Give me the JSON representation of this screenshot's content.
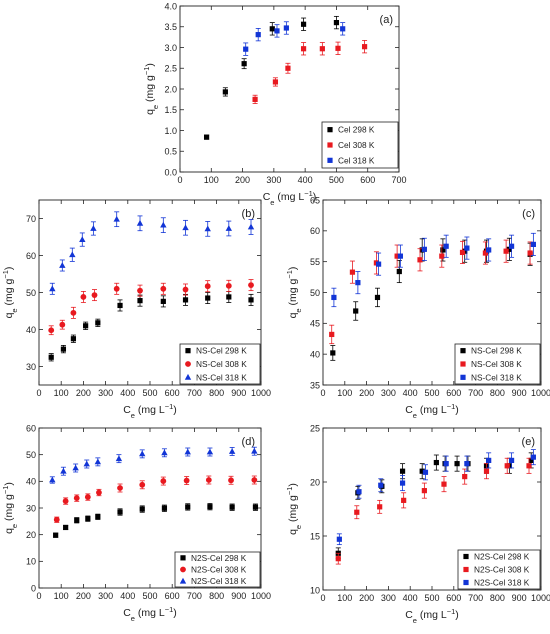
{
  "chart_data": [
    {
      "type": "scatter",
      "panel_label": "(a)",
      "xlabel": {
        "main": "C",
        "sub": "e",
        "units": " (mg L",
        "sup": "−1",
        "close": ")"
      },
      "ylabel": {
        "main": "q",
        "sub": "e",
        "units": " (mg g",
        "sup": "−1",
        "close": ")"
      },
      "xlim": [
        0,
        700
      ],
      "ylim": [
        0.0,
        4.0
      ],
      "xticks": [
        0,
        100,
        200,
        300,
        400,
        500,
        600,
        700
      ],
      "yticks": [
        0.0,
        0.5,
        1.0,
        1.5,
        2.0,
        2.5,
        3.0,
        3.5,
        4.0
      ],
      "xtick_labels": [
        "0",
        "100",
        "200",
        "300",
        "400",
        "500",
        "600",
        "700"
      ],
      "ytick_labels": [
        "0.0",
        "0.5",
        "1.0",
        "1.5",
        "2.0",
        "2.5",
        "3.0",
        "3.5",
        "4.0"
      ],
      "legend_position": "bottom-right",
      "series": [
        {
          "name": "Cel 298 K",
          "color": "#000000",
          "marker": "square",
          "x": [
            85,
            145,
            205,
            295,
            395,
            500
          ],
          "y": [
            0.84,
            1.93,
            2.61,
            3.45,
            3.56,
            3.6
          ],
          "err": [
            0.05,
            0.1,
            0.12,
            0.15,
            0.15,
            0.15
          ]
        },
        {
          "name": "Cel 308 K",
          "color": "#e8191f",
          "marker": "square",
          "x": [
            240,
            305,
            345,
            395,
            455,
            505,
            590
          ],
          "y": [
            1.75,
            2.17,
            2.5,
            2.97,
            2.97,
            2.98,
            3.02
          ],
          "err": [
            0.1,
            0.1,
            0.12,
            0.15,
            0.15,
            0.15,
            0.15
          ]
        },
        {
          "name": "Cel 318 K",
          "color": "#1235d6",
          "marker": "square",
          "x": [
            210,
            250,
            310,
            340,
            520
          ],
          "y": [
            2.96,
            3.31,
            3.4,
            3.47,
            3.45
          ],
          "err": [
            0.15,
            0.15,
            0.15,
            0.15,
            0.15
          ]
        }
      ]
    },
    {
      "type": "scatter",
      "panel_label": "(b)",
      "xlabel": {
        "main": "C",
        "sub": "e",
        "units": " (mg L",
        "sup": "−1",
        "close": ")"
      },
      "ylabel": {
        "main": "q",
        "sub": "e",
        "units": " (mg g",
        "sup": "−1",
        "close": ")"
      },
      "xlim": [
        0,
        1000
      ],
      "ylim": [
        25,
        75
      ],
      "xticks": [
        0,
        100,
        200,
        300,
        400,
        500,
        600,
        700,
        800,
        900,
        1000
      ],
      "yticks": [
        30,
        40,
        50,
        60,
        70
      ],
      "xtick_labels": [
        "0",
        "100",
        "200",
        "300",
        "400",
        "500",
        "600",
        "700",
        "800",
        "900",
        "1000"
      ],
      "ytick_labels": [
        "30",
        "40",
        "50",
        "60",
        "70"
      ],
      "legend_position": "bottom-right",
      "series": [
        {
          "name": "NS-Cel 298 K",
          "color": "#000000",
          "marker": "square",
          "x": [
            55,
            110,
            155,
            210,
            265,
            365,
            455,
            560,
            660,
            760,
            855,
            955
          ],
          "y": [
            32.5,
            34.7,
            37.5,
            41.0,
            41.8,
            46.5,
            47.8,
            47.6,
            48.0,
            48.5,
            48.8,
            48.0
          ],
          "err": [
            1.0,
            1.0,
            1.0,
            1.0,
            1.0,
            1.5,
            1.5,
            1.5,
            1.5,
            1.5,
            1.5,
            1.5
          ]
        },
        {
          "name": "NS-Cel 308 K",
          "color": "#e8191f",
          "marker": "circle",
          "x": [
            55,
            105,
            155,
            200,
            250,
            350,
            455,
            560,
            660,
            760,
            855,
            955
          ],
          "y": [
            39.8,
            41.3,
            44.5,
            48.8,
            49.3,
            51.0,
            50.5,
            51.0,
            50.8,
            51.7,
            51.8,
            52.0
          ],
          "err": [
            1.2,
            1.2,
            1.5,
            1.5,
            1.5,
            1.5,
            1.5,
            1.5,
            1.5,
            1.5,
            1.5,
            1.5
          ]
        },
        {
          "name": "NS-Cel 318 K",
          "color": "#1235d6",
          "marker": "triangle",
          "x": [
            60,
            105,
            150,
            195,
            245,
            350,
            455,
            560,
            660,
            760,
            855,
            955
          ],
          "y": [
            51.0,
            57.3,
            60.2,
            64.3,
            67.3,
            69.8,
            68.7,
            68.2,
            67.5,
            67.2,
            67.3,
            67.7
          ],
          "err": [
            1.5,
            1.5,
            1.8,
            1.8,
            1.8,
            2.0,
            2.0,
            2.0,
            2.0,
            2.0,
            2.0,
            2.0
          ]
        }
      ]
    },
    {
      "type": "scatter",
      "panel_label": "(c)",
      "xlabel": {
        "main": "C",
        "sub": "e",
        "units": " (mg L",
        "sup": "−1",
        "close": ")"
      },
      "ylabel": {
        "main": "q",
        "sub": "e",
        "units": " (mg g",
        "sup": "−1",
        "close": ")"
      },
      "xlim": [
        0,
        1000
      ],
      "ylim": [
        35,
        65
      ],
      "xticks": [
        0,
        100,
        200,
        300,
        400,
        500,
        600,
        700,
        800,
        900,
        1000
      ],
      "yticks": [
        35,
        40,
        45,
        50,
        55,
        60,
        65
      ],
      "xtick_labels": [
        "0",
        "100",
        "200",
        "300",
        "400",
        "500",
        "600",
        "700",
        "800",
        "900",
        "1000"
      ],
      "ytick_labels": [
        "35",
        "40",
        "45",
        "50",
        "55",
        "60",
        "65"
      ],
      "legend_position": "bottom-right",
      "series": [
        {
          "name": "NS-Cel 298 K",
          "color": "#000000",
          "marker": "square",
          "x": [
            45,
            150,
            250,
            350,
            455,
            550,
            650,
            750,
            855,
            950
          ],
          "y": [
            40.2,
            47.0,
            49.2,
            53.4,
            56.9,
            56.9,
            56.7,
            56.7,
            57.0,
            56.2
          ],
          "err": [
            1.2,
            1.5,
            1.5,
            1.8,
            1.8,
            1.8,
            1.8,
            1.8,
            1.8,
            1.8
          ]
        },
        {
          "name": "NS-Cel 308 K",
          "color": "#e8191f",
          "marker": "square",
          "x": [
            40,
            135,
            245,
            340,
            445,
            545,
            640,
            745,
            840,
            950
          ],
          "y": [
            43.2,
            53.3,
            54.8,
            55.9,
            55.3,
            55.9,
            56.5,
            56.4,
            56.7,
            56.4
          ],
          "err": [
            1.5,
            1.8,
            1.8,
            1.8,
            1.8,
            1.8,
            1.8,
            1.8,
            1.8,
            1.8
          ]
        },
        {
          "name": "NS-Cel 318 K",
          "color": "#1235d6",
          "marker": "square",
          "x": [
            50,
            160,
            255,
            355,
            465,
            565,
            660,
            760,
            865,
            965
          ],
          "y": [
            49.2,
            51.6,
            54.6,
            55.9,
            57.0,
            57.5,
            57.2,
            56.9,
            57.5,
            57.8
          ],
          "err": [
            1.5,
            1.8,
            1.8,
            1.8,
            1.8,
            1.8,
            1.8,
            1.8,
            1.8,
            1.8
          ]
        }
      ]
    },
    {
      "type": "scatter",
      "panel_label": "(d)",
      "xlabel": {
        "main": "C",
        "sub": "e",
        "units": " (mg L",
        "sup": "−1",
        "close": ")"
      },
      "ylabel": {
        "main": "q",
        "sub": "e",
        "units": " (mg g",
        "sup": "−1",
        "close": ")"
      },
      "xlim": [
        0,
        1000
      ],
      "ylim": [
        0,
        60
      ],
      "xticks": [
        0,
        100,
        200,
        300,
        400,
        500,
        600,
        700,
        800,
        900,
        1000
      ],
      "yticks": [
        0,
        10,
        20,
        30,
        40,
        50,
        60
      ],
      "xtick_labels": [
        "0",
        "100",
        "200",
        "300",
        "400",
        "500",
        "600",
        "700",
        "800",
        "900",
        "1000"
      ],
      "ytick_labels": [
        "0",
        "10",
        "20",
        "30",
        "40",
        "50",
        "60"
      ],
      "legend_position": "bottom-right",
      "series": [
        {
          "name": "N2S-Cel 298 K",
          "color": "#000000",
          "marker": "square",
          "x": [
            75,
            120,
            170,
            220,
            265,
            365,
            465,
            565,
            670,
            770,
            870,
            975
          ],
          "y": [
            19.8,
            22.7,
            25.4,
            26.0,
            26.7,
            28.5,
            29.6,
            29.9,
            30.4,
            30.5,
            30.3,
            30.3
          ],
          "err": [
            0.8,
            0.8,
            1.0,
            1.0,
            1.0,
            1.2,
            1.2,
            1.2,
            1.2,
            1.2,
            1.2,
            1.2
          ]
        },
        {
          "name": "N2S-Cel 308 K",
          "color": "#e8191f",
          "marker": "circle",
          "x": [
            80,
            120,
            170,
            220,
            270,
            365,
            465,
            560,
            665,
            765,
            865,
            970
          ],
          "y": [
            25.6,
            32.6,
            33.7,
            34.1,
            35.8,
            37.5,
            38.7,
            40.1,
            40.3,
            40.5,
            40.4,
            40.5
          ],
          "err": [
            1.0,
            1.2,
            1.2,
            1.2,
            1.2,
            1.5,
            1.5,
            1.5,
            1.5,
            1.5,
            1.5,
            1.5
          ]
        },
        {
          "name": "N2S-Cel 318 K",
          "color": "#1235d6",
          "marker": "triangle",
          "x": [
            60,
            110,
            165,
            215,
            265,
            360,
            465,
            565,
            670,
            770,
            870,
            970
          ],
          "y": [
            40.5,
            43.8,
            45.0,
            46.5,
            47.3,
            48.5,
            50.3,
            50.7,
            51.0,
            51.0,
            51.2,
            51.3
          ],
          "err": [
            1.2,
            1.5,
            1.5,
            1.5,
            1.5,
            1.5,
            1.5,
            1.5,
            1.5,
            1.5,
            1.5,
            1.5
          ]
        }
      ]
    },
    {
      "type": "scatter",
      "panel_label": "(e)",
      "xlabel": {
        "main": "C",
        "sub": "e",
        "units": " (mg L",
        "sup": "−1",
        "close": ")"
      },
      "ylabel": {
        "main": "q",
        "sub": "e",
        "units": " (mg g",
        "sup": "−1",
        "close": ")"
      },
      "xlim": [
        0,
        1000
      ],
      "ylim": [
        10,
        25
      ],
      "xticks": [
        0,
        100,
        200,
        300,
        400,
        500,
        600,
        700,
        800,
        900,
        1000
      ],
      "yticks": [
        10,
        15,
        20,
        25
      ],
      "xtick_labels": [
        "0",
        "100",
        "200",
        "300",
        "400",
        "500",
        "600",
        "700",
        "800",
        "900",
        "1000"
      ],
      "ytick_labels": [
        "10",
        "15",
        "20",
        "25"
      ],
      "legend_position": "bottom-right",
      "series": [
        {
          "name": "N2S-Cel 298 K",
          "color": "#000000",
          "marker": "square",
          "x": [
            70,
            160,
            270,
            365,
            455,
            520,
            560,
            615,
            665,
            750,
            855,
            955
          ],
          "y": [
            13.4,
            19.0,
            19.6,
            21.0,
            21.0,
            21.8,
            21.7,
            21.7,
            21.7,
            21.5,
            21.5,
            22.0
          ],
          "err": [
            0.5,
            0.6,
            0.6,
            0.7,
            0.7,
            0.7,
            0.7,
            0.7,
            0.7,
            0.7,
            0.7,
            0.7
          ]
        },
        {
          "name": "N2S-Cel 308 K",
          "color": "#e8191f",
          "marker": "square",
          "x": [
            70,
            155,
            260,
            370,
            465,
            555,
            650,
            750,
            845,
            945
          ],
          "y": [
            12.9,
            17.2,
            17.7,
            18.3,
            19.2,
            19.8,
            20.5,
            21.0,
            21.5,
            21.5
          ],
          "err": [
            0.5,
            0.6,
            0.6,
            0.7,
            0.7,
            0.7,
            0.7,
            0.7,
            0.7,
            0.7
          ]
        },
        {
          "name": "N2S-Cel 318 K",
          "color": "#1235d6",
          "marker": "square",
          "x": [
            75,
            165,
            265,
            365,
            470,
            565,
            660,
            760,
            865,
            965
          ],
          "y": [
            14.7,
            19.1,
            19.7,
            19.9,
            20.9,
            21.7,
            21.7,
            22.0,
            22.0,
            22.3
          ],
          "err": [
            0.5,
            0.6,
            0.6,
            0.7,
            0.7,
            0.7,
            0.7,
            0.7,
            0.7,
            0.7
          ]
        }
      ]
    }
  ]
}
